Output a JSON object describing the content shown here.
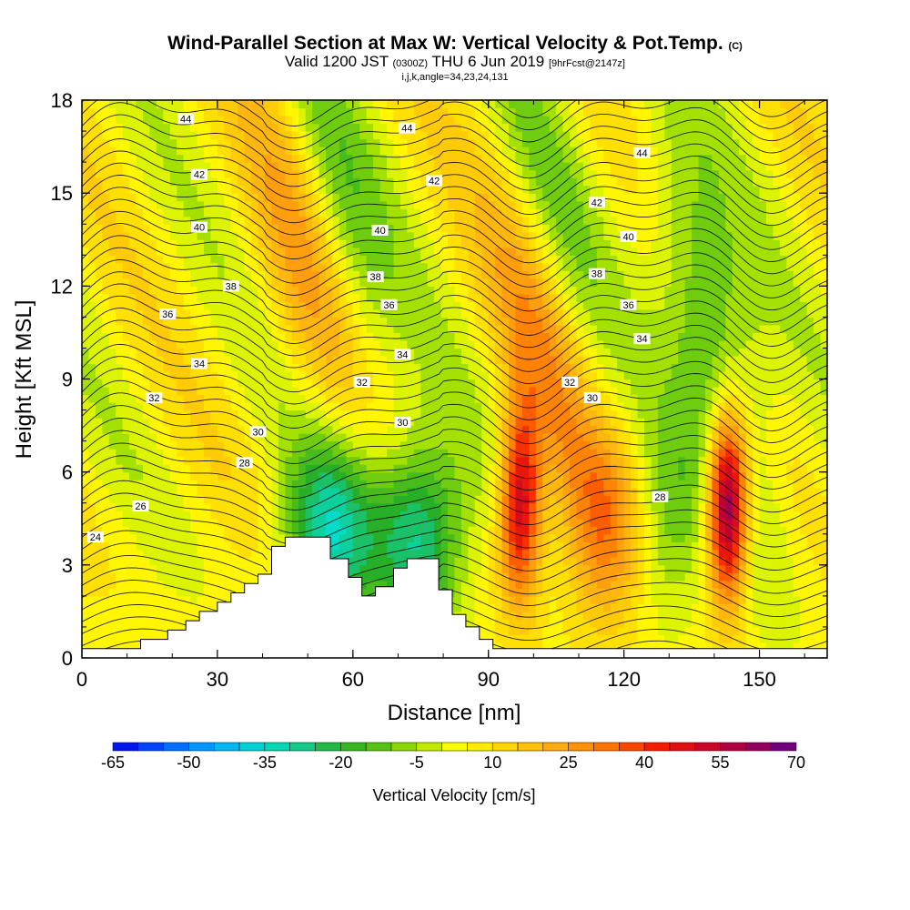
{
  "header": {
    "title": "Wind-Parallel Section at Max W: Vertical Velocity & Pot.Temp.",
    "copyright_mark": "(C)",
    "valid_prefix": "Valid 1200 JST",
    "valid_utc": "(0300Z)",
    "valid_date": "THU 6 Jun 2019",
    "forecast": "[9hrFcst@2147z]",
    "params": "i,j,k,angle=34,23,24,131"
  },
  "chart_data": {
    "type": "heatmap",
    "title": "Wind-Parallel Section at Max W: Vertical Velocity & Pot.Temp.",
    "xlabel": "Distance [nm]",
    "ylabel": "Height [Kft MSL]",
    "xlim": [
      0,
      165
    ],
    "ylim": [
      0,
      18
    ],
    "x_ticks": [
      0,
      30,
      60,
      90,
      120,
      150
    ],
    "y_ticks": [
      0,
      3,
      6,
      9,
      12,
      15,
      18
    ],
    "colorbar": {
      "label": "Vertical Velocity [cm/s]",
      "min": -65,
      "max": 70,
      "step": 5,
      "tick_labels": [
        -65,
        -50,
        -35,
        -20,
        -5,
        10,
        25,
        40,
        55,
        70
      ]
    },
    "terrain_profile": [
      [
        0,
        0.3
      ],
      [
        13,
        0.3
      ],
      [
        13,
        0.6
      ],
      [
        19,
        0.6
      ],
      [
        19,
        0.9
      ],
      [
        23,
        0.9
      ],
      [
        23,
        1.2
      ],
      [
        26,
        1.2
      ],
      [
        26,
        1.5
      ],
      [
        30,
        1.5
      ],
      [
        30,
        1.8
      ],
      [
        33,
        1.8
      ],
      [
        33,
        2.1
      ],
      [
        36,
        2.1
      ],
      [
        36,
        2.4
      ],
      [
        39,
        2.4
      ],
      [
        39,
        2.7
      ],
      [
        42,
        2.7
      ],
      [
        42,
        3.6
      ],
      [
        45,
        3.6
      ],
      [
        45,
        3.9
      ],
      [
        55,
        3.9
      ],
      [
        55,
        3.2
      ],
      [
        59,
        3.2
      ],
      [
        59,
        2.6
      ],
      [
        62,
        2.6
      ],
      [
        62,
        2.0
      ],
      [
        65,
        2.0
      ],
      [
        65,
        2.3
      ],
      [
        69,
        2.3
      ],
      [
        69,
        2.9
      ],
      [
        72,
        2.9
      ],
      [
        72,
        3.2
      ],
      [
        79,
        3.2
      ],
      [
        79,
        2.2
      ],
      [
        82,
        2.2
      ],
      [
        82,
        1.4
      ],
      [
        85,
        1.4
      ],
      [
        85,
        1.0
      ],
      [
        88,
        1.0
      ],
      [
        88,
        0.6
      ],
      [
        91,
        0.6
      ],
      [
        91,
        0.3
      ],
      [
        165,
        0.3
      ]
    ],
    "velocity_features": [
      {
        "x": 97,
        "z": 5.0,
        "peak": 50
      },
      {
        "x": 143,
        "z": 5.0,
        "peak": 70
      },
      {
        "x": 118,
        "z": 4.0,
        "peak": 28
      },
      {
        "x": 55,
        "z": 4.0,
        "peak": -35
      },
      {
        "x": 75,
        "z": 4.0,
        "peak": -35
      },
      {
        "x": 126,
        "z": 4.0,
        "peak": -22
      },
      {
        "x": 140,
        "z": 10.0,
        "peak": -25
      },
      {
        "x": 57,
        "z": 14.0,
        "peak": -18
      },
      {
        "x": 103,
        "z": 14.0,
        "peak": -18
      },
      {
        "x": 50,
        "z": 13.0,
        "peak": 20
      },
      {
        "x": 102,
        "z": 11.0,
        "peak": 25
      }
    ],
    "theta_contour_labels": [
      {
        "value": 24,
        "x": 3,
        "z": 3.9
      },
      {
        "value": 26,
        "x": 13,
        "z": 4.9
      },
      {
        "value": 28,
        "x": 36,
        "z": 6.3
      },
      {
        "value": 30,
        "x": 39,
        "z": 7.3
      },
      {
        "value": 30,
        "x": 71,
        "z": 7.6
      },
      {
        "value": 30,
        "x": 113,
        "z": 8.4
      },
      {
        "value": 28,
        "x": 128,
        "z": 5.2
      },
      {
        "value": 32,
        "x": 16,
        "z": 8.4
      },
      {
        "value": 32,
        "x": 62,
        "z": 8.9
      },
      {
        "value": 32,
        "x": 108,
        "z": 8.9
      },
      {
        "value": 34,
        "x": 26,
        "z": 9.5
      },
      {
        "value": 34,
        "x": 71,
        "z": 9.8
      },
      {
        "value": 34,
        "x": 124,
        "z": 10.3
      },
      {
        "value": 36,
        "x": 19,
        "z": 11.1
      },
      {
        "value": 36,
        "x": 68,
        "z": 11.4
      },
      {
        "value": 36,
        "x": 121,
        "z": 11.4
      },
      {
        "value": 38,
        "x": 33,
        "z": 12.0
      },
      {
        "value": 38,
        "x": 65,
        "z": 12.3
      },
      {
        "value": 38,
        "x": 114,
        "z": 12.4
      },
      {
        "value": 40,
        "x": 26,
        "z": 13.9
      },
      {
        "value": 40,
        "x": 66,
        "z": 13.8
      },
      {
        "value": 40,
        "x": 121,
        "z": 13.6
      },
      {
        "value": 42,
        "x": 26,
        "z": 15.6
      },
      {
        "value": 42,
        "x": 78,
        "z": 15.4
      },
      {
        "value": 42,
        "x": 114,
        "z": 14.7
      },
      {
        "value": 44,
        "x": 23,
        "z": 17.4
      },
      {
        "value": 44,
        "x": 72,
        "z": 17.1
      },
      {
        "value": 44,
        "x": 124,
        "z": 16.3
      }
    ]
  }
}
